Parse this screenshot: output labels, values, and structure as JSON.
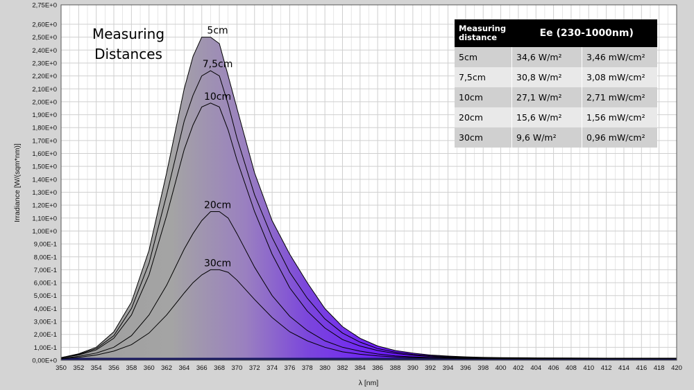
{
  "chart_data": {
    "type": "area",
    "title": "Measuring Distances",
    "xlabel": "λ [nm]",
    "ylabel": "Irradiance [W/(sqm*nm)]",
    "xlim": [
      350,
      420
    ],
    "ylim": [
      0,
      2.75
    ],
    "x_tick_labels": [
      "350",
      "352",
      "354",
      "356",
      "358",
      "360",
      "362",
      "364",
      "366",
      "368",
      "370",
      "372",
      "374",
      "376",
      "378",
      "380",
      "382",
      "384",
      "386",
      "388",
      "390",
      "392",
      "394",
      "396",
      "398",
      "400",
      "402",
      "404",
      "406",
      "408",
      "410",
      "412",
      "414",
      "416",
      "418",
      "420"
    ],
    "y_tick_labels": [
      "0,00E+0",
      "1,00E-1",
      "2,00E-1",
      "3,00E-1",
      "4,00E-1",
      "5,00E-1",
      "6,00E-1",
      "7,00E-1",
      "8,00E-1",
      "9,00E-1",
      "1,00E+0",
      "1,10E+0",
      "1,20E+0",
      "1,30E+0",
      "1,40E+0",
      "1,50E+0",
      "1,60E+0",
      "1,70E+0",
      "1,80E+0",
      "1,90E+0",
      "2,00E+0",
      "2,10E+0",
      "2,20E+0",
      "2,30E+0",
      "2,40E+0",
      "2,50E+0",
      "2,60E+0",
      "2,75E+0"
    ],
    "y_tick_values": [
      0,
      0.1,
      0.2,
      0.3,
      0.4,
      0.5,
      0.6,
      0.7,
      0.8,
      0.9,
      1.0,
      1.1,
      1.2,
      1.3,
      1.4,
      1.5,
      1.6,
      1.7,
      1.8,
      1.9,
      2.0,
      2.1,
      2.2,
      2.3,
      2.4,
      2.5,
      2.6,
      2.75
    ],
    "x": [
      350,
      352,
      354,
      356,
      358,
      360,
      362,
      364,
      365,
      366,
      367,
      368,
      369,
      370,
      372,
      374,
      376,
      378,
      380,
      382,
      384,
      386,
      388,
      390,
      392,
      394,
      396,
      398,
      400,
      404,
      408,
      412,
      416,
      420
    ],
    "series": [
      {
        "name": "5cm",
        "values": [
          0.02,
          0.05,
          0.1,
          0.22,
          0.45,
          0.85,
          1.45,
          2.1,
          2.35,
          2.5,
          2.5,
          2.45,
          2.2,
          1.95,
          1.45,
          1.08,
          0.82,
          0.6,
          0.4,
          0.26,
          0.17,
          0.11,
          0.075,
          0.055,
          0.04,
          0.032,
          0.026,
          0.022,
          0.02,
          0.018,
          0.017,
          0.016,
          0.016,
          0.016
        ]
      },
      {
        "name": "7,5cm",
        "values": [
          0.02,
          0.045,
          0.09,
          0.19,
          0.4,
          0.75,
          1.28,
          1.85,
          2.05,
          2.2,
          2.24,
          2.2,
          1.98,
          1.72,
          1.28,
          0.95,
          0.68,
          0.48,
          0.32,
          0.21,
          0.14,
          0.09,
          0.062,
          0.045,
          0.034,
          0.027,
          0.022,
          0.019,
          0.017,
          0.016,
          0.015,
          0.015,
          0.015,
          0.015
        ]
      },
      {
        "name": "10cm",
        "values": [
          0.02,
          0.04,
          0.08,
          0.17,
          0.35,
          0.66,
          1.12,
          1.63,
          1.82,
          1.96,
          1.99,
          1.96,
          1.78,
          1.55,
          1.15,
          0.82,
          0.56,
          0.38,
          0.25,
          0.16,
          0.11,
          0.075,
          0.052,
          0.038,
          0.029,
          0.023,
          0.019,
          0.017,
          0.016,
          0.015,
          0.015,
          0.014,
          0.014,
          0.014
        ]
      },
      {
        "name": "20cm",
        "values": [
          0.015,
          0.03,
          0.055,
          0.1,
          0.19,
          0.35,
          0.58,
          0.86,
          0.98,
          1.08,
          1.15,
          1.15,
          1.1,
          0.98,
          0.72,
          0.5,
          0.34,
          0.23,
          0.15,
          0.1,
          0.07,
          0.048,
          0.034,
          0.026,
          0.021,
          0.018,
          0.016,
          0.015,
          0.014,
          0.013,
          0.013,
          0.013,
          0.013,
          0.013
        ]
      },
      {
        "name": "30cm",
        "values": [
          0.012,
          0.022,
          0.04,
          0.07,
          0.12,
          0.21,
          0.35,
          0.52,
          0.6,
          0.66,
          0.7,
          0.7,
          0.68,
          0.62,
          0.47,
          0.33,
          0.22,
          0.15,
          0.1,
          0.065,
          0.046,
          0.033,
          0.025,
          0.02,
          0.017,
          0.015,
          0.013,
          0.012,
          0.012,
          0.011,
          0.011,
          0.011,
          0.011,
          0.011
        ]
      }
    ],
    "grid": true,
    "table": {
      "header_col1": "Measuring distance",
      "header_col2": "Ee  (230-1000nm)",
      "rows": [
        {
          "distance": "5cm",
          "w_m2": "34,6 W/m²",
          "mw_cm2": "3,46 mW/cm²"
        },
        {
          "distance": "7,5cm",
          "w_m2": "30,8 W/m²",
          "mw_cm2": "3,08 mW/cm²"
        },
        {
          "distance": "10cm",
          "w_m2": "27,1 W/m²",
          "mw_cm2": "2,71 mW/cm²"
        },
        {
          "distance": "20cm",
          "w_m2": "15,6 W/m²",
          "mw_cm2": "1,56 mW/cm²"
        },
        {
          "distance": "30cm",
          "w_m2": "9,6 W/m²",
          "mw_cm2": "0,96 mW/cm²"
        }
      ]
    }
  },
  "colors": {
    "plot_background": "#ffffff",
    "grid": "#cfcfcf",
    "fill_start": "#a8a8a8",
    "fill_mid": "#8a5cd0",
    "fill_end": "#5a00ff",
    "curve_line": "#000000"
  }
}
